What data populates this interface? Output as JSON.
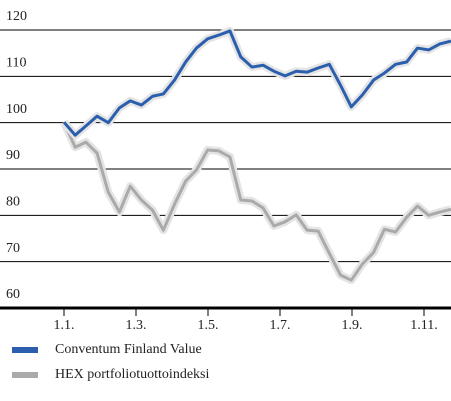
{
  "chart_data": {
    "type": "line",
    "x": [
      0,
      0.31,
      0.61,
      0.92,
      1.23,
      1.54,
      1.84,
      2.15,
      2.46,
      2.76,
      3.07,
      3.38,
      3.68,
      3.99,
      4.3,
      4.61,
      4.91,
      5.22,
      5.53,
      5.83,
      6.14,
      6.45,
      6.75,
      7.06,
      7.37,
      7.68,
      7.98,
      8.29,
      8.6,
      8.9,
      9.21,
      9.52,
      9.82,
      10.13,
      10.44,
      10.75
    ],
    "series": [
      {
        "name": "Conventum Finland Value",
        "color": "#2b5fad",
        "values": [
          100.1,
          97.3,
          99.3,
          101.4,
          100,
          103.2,
          104.7,
          103.8,
          105.7,
          106.2,
          109.2,
          113.1,
          116.1,
          118.1,
          118.9,
          119.8,
          114.2,
          112,
          112.4,
          111.1,
          110.1,
          111.1,
          110.9,
          111.8,
          112.6,
          108.1,
          103.4,
          106,
          109.2,
          110.7,
          112.6,
          113.1,
          116.1,
          115.7,
          117,
          117.6
        ]
      },
      {
        "name": "HEX portfoliotuottoindeksi",
        "color": "#aaaaaa",
        "values": [
          100.1,
          94.7,
          95.8,
          93.4,
          85,
          80.7,
          86.3,
          83.3,
          81.1,
          76.8,
          82.4,
          87.4,
          89.8,
          94.1,
          93.9,
          92.6,
          83.3,
          83.1,
          81.6,
          77.7,
          78.6,
          80.1,
          76.8,
          76.6,
          71.8,
          67.1,
          66,
          69.5,
          72,
          77,
          76.4,
          79.6,
          82,
          80,
          80.7,
          81.3
        ]
      }
    ],
    "xlim": [
      -1.5,
      10.75
    ],
    "xticks": [
      {
        "value": 0,
        "label": "1.1."
      },
      {
        "value": 2,
        "label": "1.3."
      },
      {
        "value": 4,
        "label": "1.5."
      },
      {
        "value": 6,
        "label": "1.7."
      },
      {
        "value": 8,
        "label": "1.9."
      },
      {
        "value": 10,
        "label": "1.11."
      }
    ],
    "ylim": [
      60,
      120
    ],
    "yticks": [
      60,
      70,
      80,
      90,
      100,
      110,
      120
    ],
    "grid": true
  }
}
